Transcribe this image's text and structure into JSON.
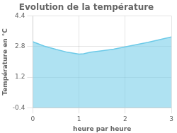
{
  "chart_data": {
    "type": "area",
    "title": "Evolution de la température",
    "xlabel": "heure par heure",
    "ylabel": "Température en °C",
    "x": [
      0,
      0.25,
      0.5,
      0.75,
      1.0,
      1.1,
      1.25,
      1.5,
      1.75,
      2.0,
      2.25,
      2.5,
      2.75,
      3.0
    ],
    "series": [
      {
        "values": [
          3.05,
          2.82,
          2.65,
          2.5,
          2.4,
          2.42,
          2.5,
          2.58,
          2.66,
          2.78,
          2.9,
          3.02,
          3.16,
          3.3
        ],
        "color": "#6dcae8"
      }
    ],
    "xlim": [
      0,
      3
    ],
    "ylim": [
      -0.4,
      4.4
    ],
    "xticks": [
      0,
      1,
      2,
      3
    ],
    "yticks": [
      -0.4,
      1.2,
      2.8,
      4.4
    ],
    "grid": true
  }
}
